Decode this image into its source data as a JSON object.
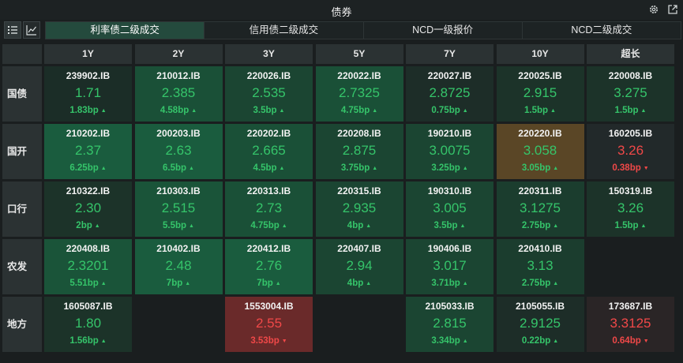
{
  "window": {
    "title": "债券"
  },
  "tabs": [
    {
      "label": "利率债二级成交",
      "active": true
    },
    {
      "label": "信用债二级成交",
      "active": false
    },
    {
      "label": "NCD一级报价",
      "active": false
    },
    {
      "label": "NCD二级成交",
      "active": false
    }
  ],
  "columns": [
    "1Y",
    "2Y",
    "3Y",
    "5Y",
    "7Y",
    "10Y",
    "超长"
  ],
  "rows": [
    {
      "label": "国债",
      "cells": [
        {
          "code": "239902.IB",
          "yield": "1.71",
          "change": "1.83bp",
          "dir": "up",
          "bg": "#1b2d27"
        },
        {
          "code": "210012.IB",
          "yield": "2.385",
          "change": "4.58bp",
          "dir": "up",
          "bg": "#1a5037"
        },
        {
          "code": "220026.IB",
          "yield": "2.535",
          "change": "3.5bp",
          "dir": "up",
          "bg": "#1b4532"
        },
        {
          "code": "220022.IB",
          "yield": "2.7325",
          "change": "4.75bp",
          "dir": "up",
          "bg": "#1a5037"
        },
        {
          "code": "220027.IB",
          "yield": "2.8725",
          "change": "0.75bp",
          "dir": "up",
          "bg": "#1d2d28"
        },
        {
          "code": "220025.IB",
          "yield": "2.915",
          "change": "1.5bp",
          "dir": "up",
          "bg": "#1c3329"
        },
        {
          "code": "220008.IB",
          "yield": "3.275",
          "change": "1.5bp",
          "dir": "up",
          "bg": "#1c3329"
        }
      ]
    },
    {
      "label": "国开",
      "cells": [
        {
          "code": "210202.IB",
          "yield": "2.37",
          "change": "6.25bp",
          "dir": "up",
          "bg": "#1a5c3e"
        },
        {
          "code": "200203.IB",
          "yield": "2.63",
          "change": "6.5bp",
          "dir": "up",
          "bg": "#1a5c3e"
        },
        {
          "code": "220202.IB",
          "yield": "2.665",
          "change": "4.5bp",
          "dir": "up",
          "bg": "#1a5037"
        },
        {
          "code": "220208.IB",
          "yield": "2.875",
          "change": "3.75bp",
          "dir": "up",
          "bg": "#1b4532"
        },
        {
          "code": "190210.IB",
          "yield": "3.0075",
          "change": "3.25bp",
          "dir": "up",
          "bg": "#1b4532"
        },
        {
          "code": "220220.IB",
          "yield": "3.058",
          "change": "3.05bp",
          "dir": "up",
          "bg": "#5a4626"
        },
        {
          "code": "160205.IB",
          "yield": "3.26",
          "change": "0.38bp",
          "dir": "dn",
          "bg": "#22292a"
        }
      ]
    },
    {
      "label": "口行",
      "cells": [
        {
          "code": "210322.IB",
          "yield": "2.30",
          "change": "2bp",
          "dir": "up",
          "bg": "#1c3329"
        },
        {
          "code": "210303.IB",
          "yield": "2.515",
          "change": "5.5bp",
          "dir": "up",
          "bg": "#1a5439"
        },
        {
          "code": "220313.IB",
          "yield": "2.73",
          "change": "4.75bp",
          "dir": "up",
          "bg": "#1a5037"
        },
        {
          "code": "220315.IB",
          "yield": "2.935",
          "change": "4bp",
          "dir": "up",
          "bg": "#1b4532"
        },
        {
          "code": "190310.IB",
          "yield": "3.005",
          "change": "3.5bp",
          "dir": "up",
          "bg": "#1b4532"
        },
        {
          "code": "220311.IB",
          "yield": "3.1275",
          "change": "2.75bp",
          "dir": "up",
          "bg": "#1b3d2e"
        },
        {
          "code": "150319.IB",
          "yield": "3.26",
          "change": "1.5bp",
          "dir": "up",
          "bg": "#1c3329"
        }
      ]
    },
    {
      "label": "农发",
      "cells": [
        {
          "code": "220408.IB",
          "yield": "2.3201",
          "change": "5.51bp",
          "dir": "up",
          "bg": "#1a5439"
        },
        {
          "code": "210402.IB",
          "yield": "2.48",
          "change": "7bp",
          "dir": "up",
          "bg": "#1a5c3e"
        },
        {
          "code": "220412.IB",
          "yield": "2.76",
          "change": "7bp",
          "dir": "up",
          "bg": "#1a5c3e"
        },
        {
          "code": "220407.IB",
          "yield": "2.94",
          "change": "4bp",
          "dir": "up",
          "bg": "#1b4532"
        },
        {
          "code": "190406.IB",
          "yield": "3.017",
          "change": "3.71bp",
          "dir": "up",
          "bg": "#1b4532"
        },
        {
          "code": "220410.IB",
          "yield": "3.13",
          "change": "2.75bp",
          "dir": "up",
          "bg": "#1b3d2e"
        },
        null
      ]
    },
    {
      "label": "地方",
      "cells": [
        {
          "code": "1605087.IB",
          "yield": "1.80",
          "change": "1.56bp",
          "dir": "up",
          "bg": "#1c3329"
        },
        null,
        {
          "code": "1553004.IB",
          "yield": "2.55",
          "change": "3.53bp",
          "dir": "dn",
          "bg": "#6a2a2a"
        },
        null,
        {
          "code": "2105033.IB",
          "yield": "2.815",
          "change": "3.34bp",
          "dir": "up",
          "bg": "#1b4532"
        },
        {
          "code": "2105055.IB",
          "yield": "2.9125",
          "change": "0.22bp",
          "dir": "up",
          "bg": "#1d2d28"
        },
        {
          "code": "173687.IB",
          "yield": "3.3125",
          "change": "0.64bp",
          "dir": "dn",
          "bg": "#2a2526"
        }
      ]
    }
  ]
}
